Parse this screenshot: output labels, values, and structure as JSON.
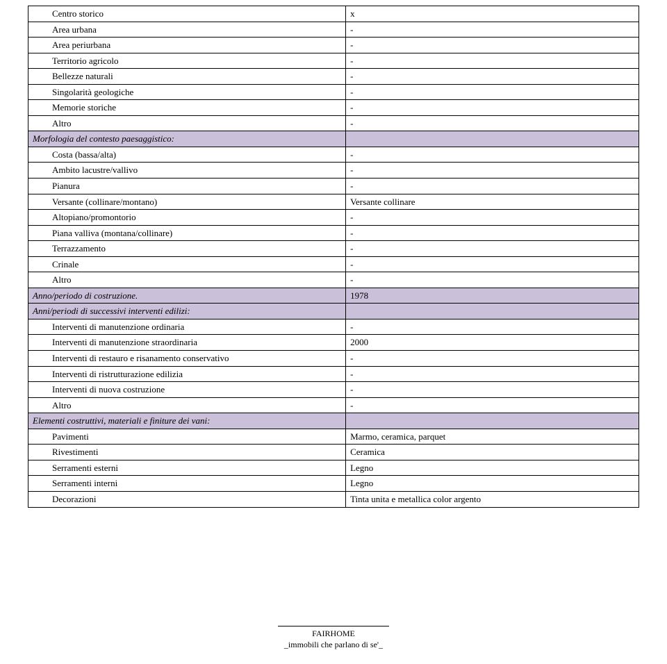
{
  "section1": {
    "rows": [
      {
        "label": "Centro storico",
        "value": "x"
      },
      {
        "label": "Area urbana",
        "value": "-"
      },
      {
        "label": "Area periurbana",
        "value": "-"
      },
      {
        "label": "Territorio agricolo",
        "value": "-"
      },
      {
        "label": "Bellezze naturali",
        "value": "-"
      },
      {
        "label": "Singolarità geologiche",
        "value": "-"
      },
      {
        "label": "Memorie storiche",
        "value": "-"
      },
      {
        "label": "Altro",
        "value": "-"
      }
    ]
  },
  "section2": {
    "title": "Morfologia del contesto paesaggistico:",
    "rows": [
      {
        "label": "Costa (bassa/alta)",
        "value": "-"
      },
      {
        "label": "Ambito lacustre/vallivo",
        "value": "-"
      },
      {
        "label": "Pianura",
        "value": "-"
      },
      {
        "label": "Versante (collinare/montano)",
        "value": "Versante collinare"
      },
      {
        "label": "Altopiano/promontorio",
        "value": "-"
      },
      {
        "label": "Piana valliva (montana/collinare)",
        "value": "-"
      },
      {
        "label": "Terrazzamento",
        "value": "-"
      },
      {
        "label": "Crinale",
        "value": "-"
      },
      {
        "label": "Altro",
        "value": "-"
      }
    ]
  },
  "section3": {
    "title": "Anno/periodo di costruzione.",
    "title_value": "1978"
  },
  "section4": {
    "title": "Anni/periodi di successivi interventi edilizi:",
    "rows": [
      {
        "label": "Interventi di manutenzione ordinaria",
        "value": "-"
      },
      {
        "label": "Interventi di manutenzione straordinaria",
        "value": "2000"
      },
      {
        "label": "Interventi di restauro e risanamento conservativo",
        "value": "-"
      },
      {
        "label": "Interventi di ristrutturazione edilizia",
        "value": "-"
      },
      {
        "label": "Interventi di nuova costruzione",
        "value": "-"
      },
      {
        "label": "Altro",
        "value": "-"
      }
    ]
  },
  "section5": {
    "title": "Elementi costruttivi, materiali e finiture dei vani:",
    "rows": [
      {
        "label": "Pavimenti",
        "value": "Marmo, ceramica, parquet"
      },
      {
        "label": "Rivestimenti",
        "value": "Ceramica"
      },
      {
        "label": "Serramenti esterni",
        "value": "Legno"
      },
      {
        "label": "Serramenti interni",
        "value": "Legno"
      },
      {
        "label": "Decorazioni",
        "value": "Tinta unita e metallica color argento"
      }
    ]
  },
  "footer": {
    "line1": "FAIRHOME",
    "line2": "_immobili che parlano di se'_"
  },
  "colors": {
    "header_bg": "#cbc0da",
    "border": "#000000",
    "page_bg": "#ffffff"
  }
}
